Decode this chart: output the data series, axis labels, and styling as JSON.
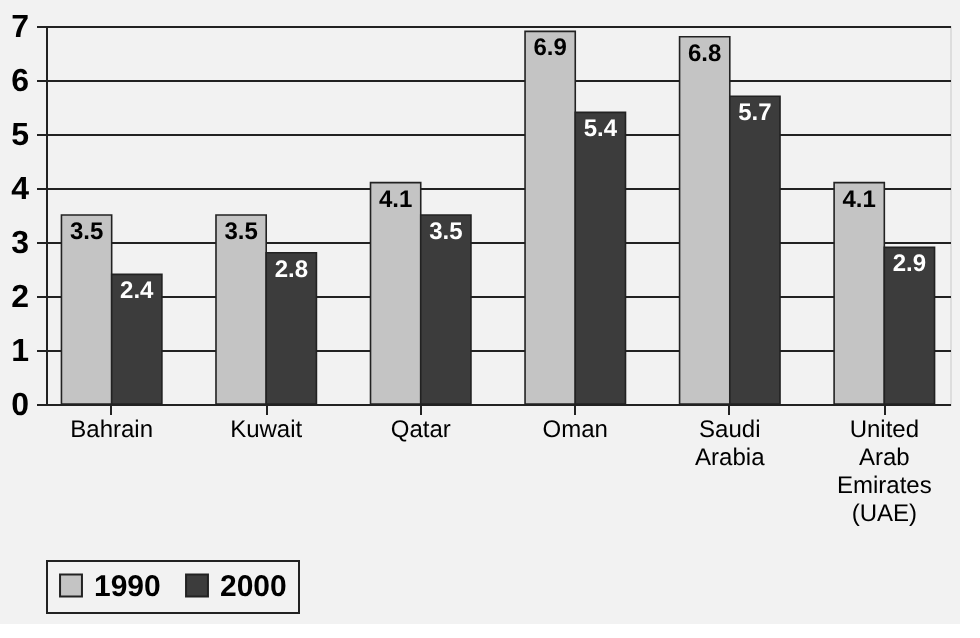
{
  "chart_data": {
    "type": "bar",
    "categories": [
      "Bahrain",
      "Kuwait",
      "Qatar",
      "Oman",
      "Saudi Arabia",
      "United Arab Emirates (UAE)"
    ],
    "series": [
      {
        "name": "1990",
        "color": "#c4c4c4",
        "values": [
          3.5,
          3.5,
          4.1,
          6.9,
          6.8,
          4.1
        ]
      },
      {
        "name": "2000",
        "color": "#3c3c3c",
        "values": [
          2.4,
          2.8,
          3.5,
          5.4,
          5.7,
          2.9
        ]
      }
    ],
    "ylim": [
      0,
      7
    ],
    "yticks": [
      0,
      1,
      2,
      3,
      4,
      5,
      6,
      7
    ],
    "grid": "y",
    "legend": "bottom",
    "data_labels": true
  }
}
